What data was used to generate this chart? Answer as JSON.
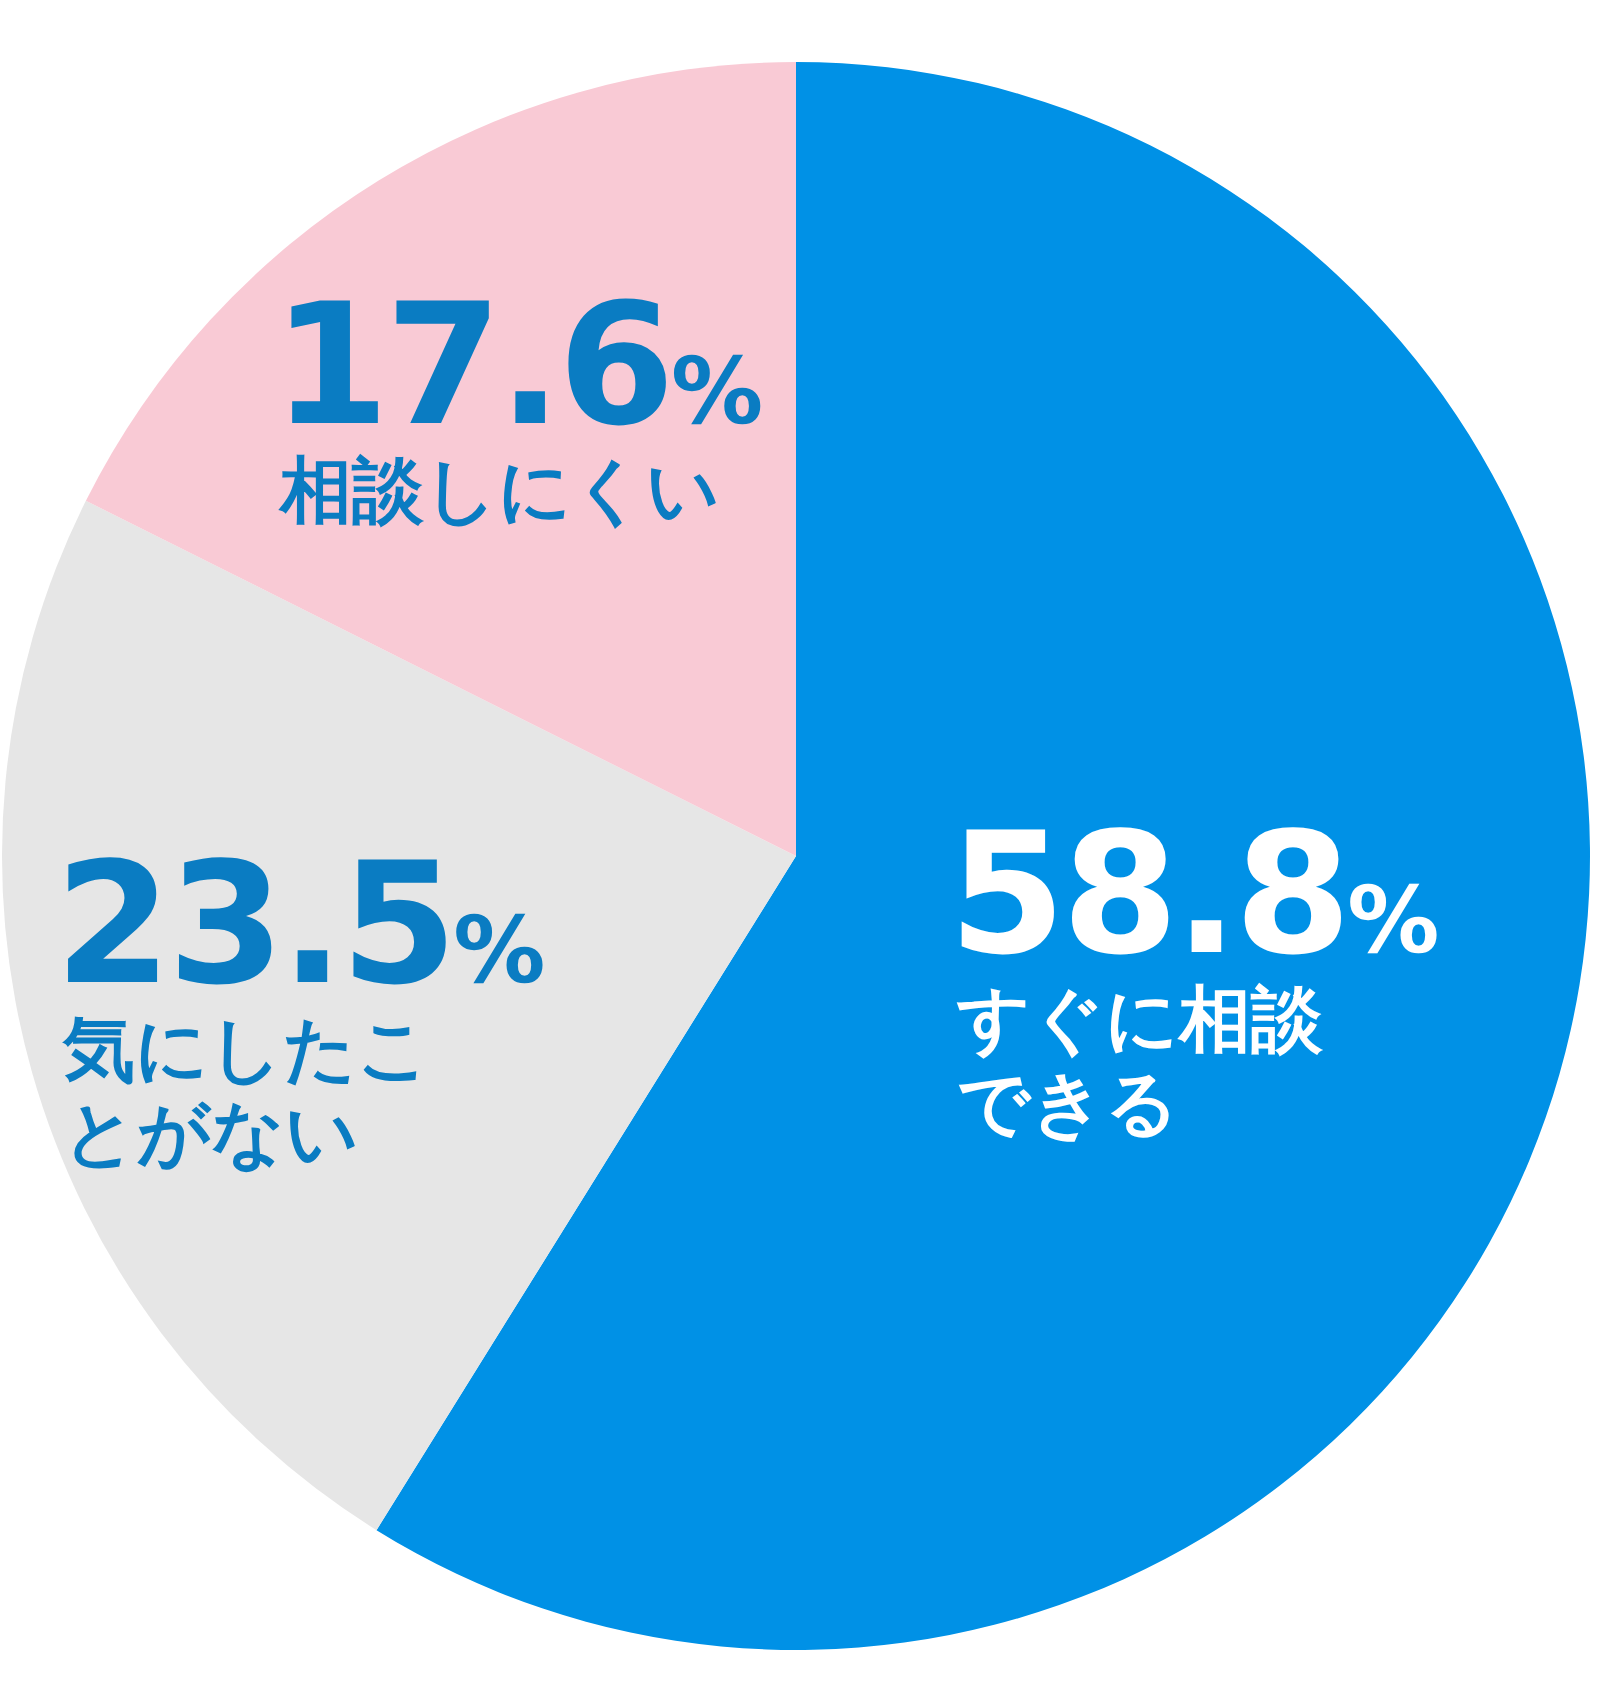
{
  "chart_data": {
    "type": "pie",
    "categories": [
      "すぐに相談できる",
      "気にしたことがない",
      "相談しにくい"
    ],
    "values": [
      58.8,
      23.5,
      17.6
    ],
    "value_labels": [
      "58.8%",
      "23.5%",
      "17.6%"
    ],
    "colors": [
      "#0091e6",
      "#e6e6e6",
      "#f9cad5"
    ]
  }
}
